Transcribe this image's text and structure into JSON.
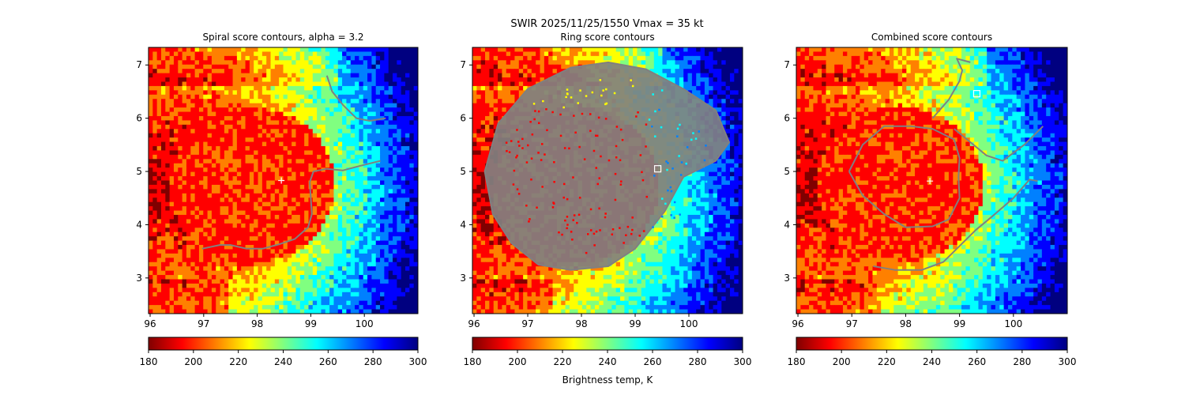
{
  "figure": {
    "suptitle": "SWIR  2025/11/25/1550    Vmax = 35 kt",
    "colorbar_label": "Brightness temp, K"
  },
  "colors": {
    "jet_reversed": [
      "#800000",
      "#ff0000",
      "#ff8000",
      "#ffff00",
      "#80ff80",
      "#00ffff",
      "#0080ff",
      "#0000ff",
      "#000080"
    ],
    "contour": "#808080",
    "center_marker": "#ffffff"
  },
  "chart_data": [
    {
      "type": "heatmap",
      "title": "Spiral score contours, alpha =  3.2",
      "xlim": [
        95.97,
        101.0
      ],
      "ylim": [
        2.33,
        7.33
      ],
      "xticks": [
        "96",
        "97",
        "98",
        "99",
        "100"
      ],
      "yticks": [
        "3",
        "4",
        "5",
        "6",
        "7"
      ],
      "colorbar": {
        "range": [
          180,
          300
        ],
        "ticks": [
          "180",
          "200",
          "220",
          "240",
          "260",
          "280",
          "300"
        ]
      },
      "center_marker": {
        "lon": 98.45,
        "lat": 4.83
      },
      "contours": [
        [
          [
            96.97,
            3.55
          ],
          [
            97.3,
            3.62
          ],
          [
            97.5,
            3.62
          ],
          [
            97.8,
            3.55
          ],
          [
            98.1,
            3.55
          ],
          [
            98.4,
            3.63
          ],
          [
            98.7,
            3.73
          ],
          [
            98.95,
            3.95
          ],
          [
            99.02,
            4.2
          ],
          [
            99.0,
            4.5
          ],
          [
            98.98,
            4.8
          ],
          [
            99.05,
            5.0
          ],
          [
            99.3,
            5.05
          ],
          [
            99.6,
            5.02
          ],
          [
            99.9,
            5.1
          ],
          [
            100.3,
            5.2
          ]
        ],
        [
          [
            99.3,
            6.8
          ],
          [
            99.4,
            6.5
          ],
          [
            99.6,
            6.25
          ],
          [
            99.85,
            6.0
          ],
          [
            100.1,
            5.95
          ],
          [
            100.4,
            6.0
          ]
        ]
      ]
    },
    {
      "type": "heatmap",
      "title": "Ring score contours",
      "xlim": [
        95.97,
        101.0
      ],
      "ylim": [
        2.33,
        7.33
      ],
      "xticks": [
        "96",
        "97",
        "98",
        "99",
        "100"
      ],
      "yticks": [
        "3",
        "4",
        "5",
        "6",
        "7"
      ],
      "colorbar": {
        "range": [
          180,
          300
        ],
        "ticks": [
          "180",
          "200",
          "220",
          "240",
          "260",
          "280",
          "300"
        ]
      },
      "square_marker": {
        "lon": 99.42,
        "lat": 5.05
      },
      "ring_region": [
        [
          96.2,
          5.0
        ],
        [
          96.45,
          5.9
        ],
        [
          97.0,
          6.55
        ],
        [
          97.8,
          6.95
        ],
        [
          98.5,
          7.05
        ],
        [
          99.2,
          6.92
        ],
        [
          99.9,
          6.55
        ],
        [
          100.5,
          6.15
        ],
        [
          100.75,
          5.55
        ],
        [
          100.5,
          5.2
        ],
        [
          99.9,
          4.9
        ],
        [
          99.55,
          4.25
        ],
        [
          99.0,
          3.55
        ],
        [
          98.5,
          3.22
        ],
        [
          97.8,
          3.15
        ],
        [
          97.2,
          3.25
        ],
        [
          96.7,
          3.65
        ],
        [
          96.35,
          4.2
        ]
      ]
    },
    {
      "type": "heatmap",
      "title": "Combined score contours",
      "xlim": [
        95.97,
        101.0
      ],
      "ylim": [
        2.33,
        7.33
      ],
      "xticks": [
        "96",
        "97",
        "98",
        "99",
        "100"
      ],
      "yticks": [
        "3",
        "4",
        "5",
        "6",
        "7"
      ],
      "colorbar": {
        "range": [
          180,
          300
        ],
        "ticks": [
          "180",
          "200",
          "220",
          "240",
          "260",
          "280",
          "300"
        ]
      },
      "center_marker": {
        "lon": 98.45,
        "lat": 4.82
      },
      "square_marker": {
        "lon": 99.32,
        "lat": 6.46
      },
      "contours": [
        [
          [
            97.4,
            3.22
          ],
          [
            97.8,
            3.15
          ],
          [
            98.3,
            3.15
          ],
          [
            98.7,
            3.3
          ],
          [
            99.0,
            3.6
          ],
          [
            99.3,
            3.9
          ],
          [
            99.6,
            4.15
          ],
          [
            100.0,
            4.5
          ],
          [
            100.3,
            4.85
          ],
          [
            100.45,
            4.82
          ]
        ],
        [
          [
            96.95,
            5.0
          ],
          [
            97.2,
            5.5
          ],
          [
            97.6,
            5.85
          ],
          [
            98.1,
            5.85
          ],
          [
            98.5,
            5.8
          ],
          [
            98.9,
            5.6
          ],
          [
            99.0,
            5.25
          ],
          [
            98.98,
            4.9
          ],
          [
            99.0,
            4.5
          ],
          [
            98.8,
            4.1
          ],
          [
            98.5,
            3.97
          ],
          [
            98.0,
            3.95
          ],
          [
            97.6,
            4.2
          ],
          [
            97.2,
            4.55
          ],
          [
            96.95,
            5.0
          ]
        ],
        [
          [
            98.5,
            6.0
          ],
          [
            98.8,
            6.35
          ],
          [
            99.0,
            6.7
          ],
          [
            99.05,
            6.9
          ],
          [
            98.95,
            7.12
          ],
          [
            99.2,
            7.05
          ]
        ],
        [
          [
            98.9,
            5.8
          ],
          [
            99.2,
            5.55
          ],
          [
            99.5,
            5.3
          ],
          [
            99.8,
            5.2
          ],
          [
            100.2,
            5.5
          ],
          [
            100.55,
            5.85
          ]
        ]
      ]
    }
  ]
}
